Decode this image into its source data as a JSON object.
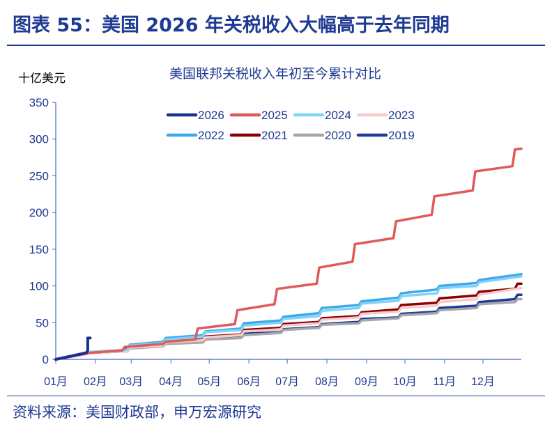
{
  "header": {
    "title": "图表 55：美国 2026 年关税收入大幅高于去年同期"
  },
  "footer": {
    "source": "资料来源：美国财政部，申万宏源研究"
  },
  "chart_data": {
    "type": "line",
    "title": "美国联邦关税收入年初至今累计对比",
    "ylabel": "十亿美元",
    "ylim": [
      0,
      350
    ],
    "yticks": [
      0,
      50,
      100,
      150,
      200,
      250,
      300,
      350
    ],
    "xticks": [
      "01月",
      "02月",
      "03月",
      "04月",
      "05月",
      "06月",
      "07月",
      "08月",
      "09月",
      "10月",
      "11月",
      "12月"
    ],
    "grid": false,
    "legend": "top",
    "series": [
      {
        "name": "2019",
        "color": "#1f3a9c",
        "points": [
          [
            "01-01",
            0
          ],
          [
            "01-26",
            8
          ],
          [
            "01-28",
            9
          ],
          [
            "02-26",
            11
          ],
          [
            "02-28",
            15
          ],
          [
            "03-26",
            18
          ],
          [
            "03-28",
            22
          ],
          [
            "04-26",
            24
          ],
          [
            "04-28",
            28
          ],
          [
            "05-26",
            31
          ],
          [
            "05-28",
            35
          ],
          [
            "06-26",
            37
          ],
          [
            "06-28",
            41
          ],
          [
            "07-26",
            44
          ],
          [
            "07-28",
            48
          ],
          [
            "08-26",
            51
          ],
          [
            "08-28",
            55
          ],
          [
            "09-26",
            57
          ],
          [
            "09-28",
            62
          ],
          [
            "10-26",
            65
          ],
          [
            "10-28",
            70
          ],
          [
            "11-26",
            73
          ],
          [
            "11-28",
            78
          ],
          [
            "12-26",
            82
          ],
          [
            "12-28",
            88
          ],
          [
            "12-31",
            88
          ]
        ]
      },
      {
        "name": "2020",
        "color": "#a6a6a6",
        "points": [
          [
            "01-01",
            0
          ],
          [
            "01-26",
            8
          ],
          [
            "01-28",
            9
          ],
          [
            "02-26",
            11
          ],
          [
            "02-28",
            15
          ],
          [
            "03-26",
            18
          ],
          [
            "03-28",
            21
          ],
          [
            "04-26",
            23
          ],
          [
            "04-28",
            27
          ],
          [
            "05-26",
            29
          ],
          [
            "05-28",
            33
          ],
          [
            "06-26",
            36
          ],
          [
            "06-28",
            40
          ],
          [
            "07-26",
            43
          ],
          [
            "07-28",
            47
          ],
          [
            "08-26",
            49
          ],
          [
            "08-28",
            53
          ],
          [
            "09-26",
            56
          ],
          [
            "09-28",
            60
          ],
          [
            "10-26",
            63
          ],
          [
            "10-28",
            67
          ],
          [
            "11-26",
            70
          ],
          [
            "11-28",
            75
          ],
          [
            "12-26",
            78
          ],
          [
            "12-28",
            82
          ],
          [
            "12-31",
            82
          ]
        ]
      },
      {
        "name": "2021",
        "color": "#8b0000",
        "points": [
          [
            "01-01",
            0
          ],
          [
            "01-26",
            8
          ],
          [
            "01-28",
            9
          ],
          [
            "02-24",
            11
          ],
          [
            "02-26",
            17
          ],
          [
            "03-26",
            20
          ],
          [
            "03-28",
            24
          ],
          [
            "04-26",
            27
          ],
          [
            "04-28",
            31
          ],
          [
            "05-26",
            34
          ],
          [
            "05-28",
            40
          ],
          [
            "06-26",
            43
          ],
          [
            "06-28",
            48
          ],
          [
            "07-26",
            51
          ],
          [
            "07-28",
            56
          ],
          [
            "08-26",
            59
          ],
          [
            "08-28",
            64
          ],
          [
            "09-26",
            68
          ],
          [
            "09-28",
            74
          ],
          [
            "10-26",
            77
          ],
          [
            "10-28",
            83
          ],
          [
            "11-26",
            87
          ],
          [
            "11-28",
            92
          ],
          [
            "12-26",
            96
          ],
          [
            "12-28",
            103
          ],
          [
            "12-31",
            103
          ]
        ]
      },
      {
        "name": "2022",
        "color": "#3fa9ea",
        "points": [
          [
            "01-01",
            0
          ],
          [
            "01-26",
            9
          ],
          [
            "01-28",
            10
          ],
          [
            "02-26",
            13
          ],
          [
            "02-28",
            20
          ],
          [
            "03-26",
            24
          ],
          [
            "03-28",
            29
          ],
          [
            "04-26",
            33
          ],
          [
            "04-28",
            38
          ],
          [
            "05-26",
            42
          ],
          [
            "05-28",
            49
          ],
          [
            "06-26",
            53
          ],
          [
            "06-28",
            58
          ],
          [
            "07-26",
            63
          ],
          [
            "07-28",
            70
          ],
          [
            "08-26",
            74
          ],
          [
            "08-28",
            79
          ],
          [
            "09-26",
            84
          ],
          [
            "09-28",
            90
          ],
          [
            "10-26",
            95
          ],
          [
            "10-28",
            100
          ],
          [
            "11-26",
            104
          ],
          [
            "11-28",
            108
          ],
          [
            "12-31",
            116
          ]
        ]
      },
      {
        "name": "2023",
        "color": "#f5cccc",
        "points": [
          [
            "01-01",
            0
          ],
          [
            "01-26",
            8
          ],
          [
            "01-28",
            9
          ],
          [
            "02-26",
            11
          ],
          [
            "02-28",
            16
          ],
          [
            "03-26",
            19
          ],
          [
            "03-28",
            23
          ],
          [
            "04-26",
            26
          ],
          [
            "04-28",
            30
          ],
          [
            "05-26",
            33
          ],
          [
            "05-28",
            38
          ],
          [
            "06-26",
            41
          ],
          [
            "06-28",
            46
          ],
          [
            "07-26",
            49
          ],
          [
            "07-28",
            54
          ],
          [
            "08-26",
            57
          ],
          [
            "08-28",
            62
          ],
          [
            "09-26",
            65
          ],
          [
            "09-28",
            70
          ],
          [
            "10-26",
            73
          ],
          [
            "10-28",
            78
          ],
          [
            "11-26",
            82
          ],
          [
            "11-28",
            88
          ],
          [
            "12-31",
            97
          ]
        ]
      },
      {
        "name": "2024",
        "color": "#7fd3f7",
        "points": [
          [
            "01-01",
            0
          ],
          [
            "01-26",
            9
          ],
          [
            "01-28",
            10
          ],
          [
            "02-26",
            13
          ],
          [
            "02-28",
            19
          ],
          [
            "03-26",
            22
          ],
          [
            "03-28",
            27
          ],
          [
            "04-26",
            31
          ],
          [
            "04-28",
            37
          ],
          [
            "05-26",
            40
          ],
          [
            "05-28",
            46
          ],
          [
            "06-26",
            50
          ],
          [
            "06-28",
            55
          ],
          [
            "07-26",
            59
          ],
          [
            "07-28",
            66
          ],
          [
            "08-26",
            70
          ],
          [
            "08-28",
            76
          ],
          [
            "09-26",
            80
          ],
          [
            "09-28",
            86
          ],
          [
            "10-26",
            90
          ],
          [
            "10-28",
            97
          ],
          [
            "11-26",
            100
          ],
          [
            "11-28",
            105
          ],
          [
            "12-31",
            113
          ]
        ]
      },
      {
        "name": "2025",
        "color": "#e05a5a",
        "points": [
          [
            "01-01",
            0
          ],
          [
            "01-28",
            9
          ],
          [
            "02-22",
            12
          ],
          [
            "02-24",
            17
          ],
          [
            "03-26",
            21
          ],
          [
            "03-28",
            24
          ],
          [
            "04-20",
            27
          ],
          [
            "04-22",
            42
          ],
          [
            "05-21",
            48
          ],
          [
            "05-23",
            67
          ],
          [
            "06-21",
            75
          ],
          [
            "06-23",
            96
          ],
          [
            "07-24",
            103
          ],
          [
            "07-26",
            125
          ],
          [
            "08-21",
            133
          ],
          [
            "08-23",
            157
          ],
          [
            "09-22",
            165
          ],
          [
            "09-24",
            188
          ],
          [
            "10-22",
            197
          ],
          [
            "10-24",
            222
          ],
          [
            "11-23",
            230
          ],
          [
            "11-25",
            256
          ],
          [
            "12-24",
            263
          ],
          [
            "12-26",
            286
          ],
          [
            "12-31",
            287
          ]
        ]
      },
      {
        "name": "2026",
        "color": "#1a2f8f",
        "points": [
          [
            "01-01",
            0
          ],
          [
            "01-25",
            9
          ],
          [
            "01-26",
            12
          ],
          [
            "01-26",
            29
          ],
          [
            "01-28",
            29
          ]
        ]
      }
    ]
  }
}
